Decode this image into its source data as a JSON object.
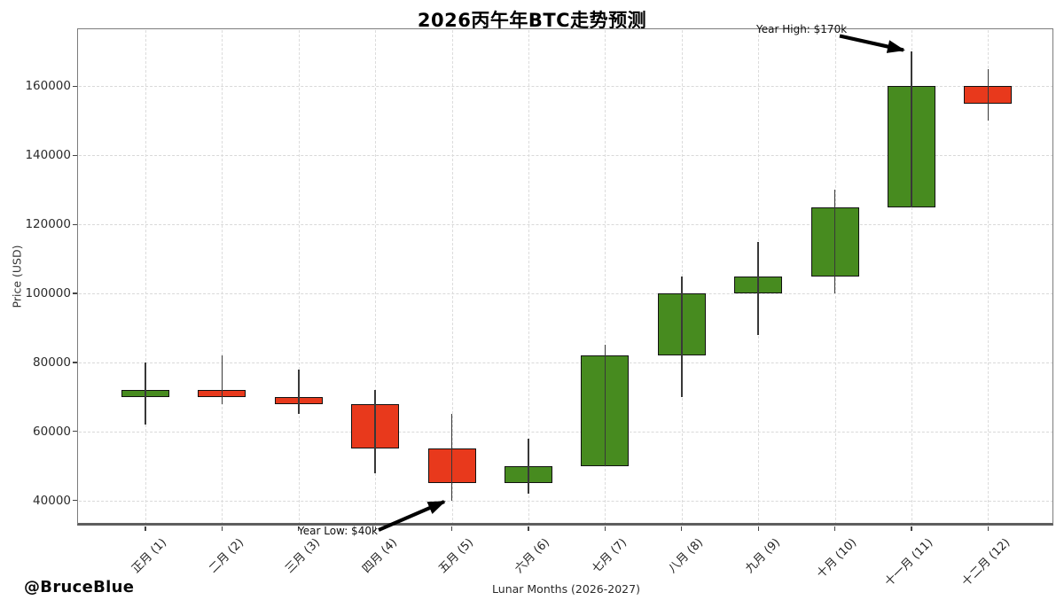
{
  "page": {
    "watermark": "@BruceBlue"
  },
  "chart_data": {
    "type": "candlestick",
    "title": "2026丙午年BTC走势预测",
    "xlabel": "Lunar Months (2026-2027)",
    "ylabel": "Price (USD)",
    "categories": [
      "正月 (1)",
      "二月 (2)",
      "三月 (3)",
      "四月 (4)",
      "五月 (5)",
      "六月 (6)",
      "七月 (7)",
      "八月 (8)",
      "九月 (9)",
      "十月 (10)",
      "十一月 (11)",
      "十二月 (12)"
    ],
    "series": [
      {
        "month": "正月 (1)",
        "open": 70000,
        "high": 80000,
        "low": 62000,
        "close": 72000
      },
      {
        "month": "二月 (2)",
        "open": 72000,
        "high": 82000,
        "low": 68000,
        "close": 70000
      },
      {
        "month": "三月 (3)",
        "open": 70000,
        "high": 78000,
        "low": 65000,
        "close": 68000
      },
      {
        "month": "四月 (4)",
        "open": 68000,
        "high": 72000,
        "low": 48000,
        "close": 55000
      },
      {
        "month": "五月 (5)",
        "open": 55000,
        "high": 65000,
        "low": 40000,
        "close": 45000
      },
      {
        "month": "六月 (6)",
        "open": 45000,
        "high": 58000,
        "low": 42000,
        "close": 50000
      },
      {
        "month": "七月 (7)",
        "open": 50000,
        "high": 85000,
        "low": 50000,
        "close": 82000
      },
      {
        "month": "八月 (8)",
        "open": 82000,
        "high": 105000,
        "low": 70000,
        "close": 100000
      },
      {
        "month": "九月 (9)",
        "open": 100000,
        "high": 115000,
        "low": 88000,
        "close": 105000
      },
      {
        "month": "十月 (10)",
        "open": 105000,
        "high": 130000,
        "low": 100000,
        "close": 125000
      },
      {
        "month": "十一月 (11)",
        "open": 125000,
        "high": 170000,
        "low": 125000,
        "close": 160000
      },
      {
        "month": "十二月 (12)",
        "open": 160000,
        "high": 165000,
        "low": 150000,
        "close": 155000
      }
    ],
    "y_ticks": [
      40000,
      60000,
      80000,
      100000,
      120000,
      140000,
      160000
    ],
    "ylim": [
      32500,
      176500
    ],
    "grid": true,
    "legend": "none",
    "colors": {
      "up": "#478b1f",
      "down": "#e8391c",
      "wick": "#383838",
      "grid": "#d9d9d9",
      "spine": "#7c7c7c"
    },
    "annotations": [
      {
        "label": "Year High: $170k",
        "value": 170000,
        "target_month": "十一月 (11)"
      },
      {
        "label": "Year Low: $40k",
        "value": 40000,
        "target_month": "五月 (5)"
      }
    ]
  }
}
